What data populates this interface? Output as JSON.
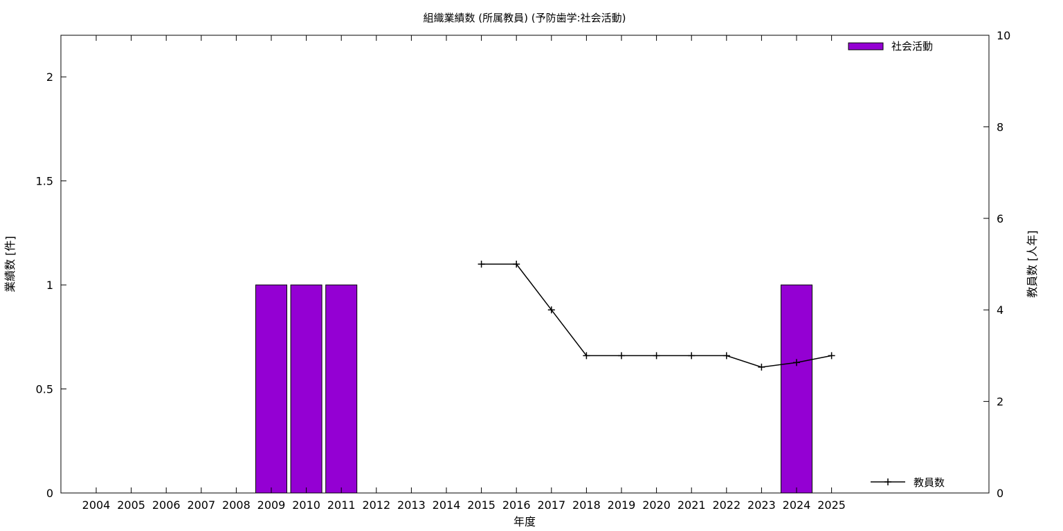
{
  "chart_data": {
    "type": "bar",
    "title": "組織業績数 (所属教員) (予防歯学:社会活動)",
    "xlabel": "年度",
    "ylabel": "業績数 [件]",
    "y2label": "教員数 [人年]",
    "categories": [
      "2004",
      "2005",
      "2006",
      "2007",
      "2008",
      "2009",
      "2010",
      "2011",
      "2012",
      "2013",
      "2014",
      "2015",
      "2016",
      "2017",
      "2018",
      "2019",
      "2020",
      "2021",
      "2022",
      "2023",
      "2024",
      "2025"
    ],
    "ylim": [
      0,
      2.2
    ],
    "yticks": [
      "0",
      "0.5",
      "1",
      "1.5",
      "2"
    ],
    "y2lim": [
      0,
      10
    ],
    "y2ticks": [
      "0",
      "2",
      "4",
      "6",
      "8",
      "10"
    ],
    "grid": false,
    "series": [
      {
        "name": "社会活動",
        "type": "bar",
        "axis": "left",
        "color": "#9400d3",
        "values": [
          0,
          0,
          0,
          0,
          0,
          1,
          1,
          1,
          0,
          0,
          0,
          0,
          0,
          0,
          0,
          0,
          0,
          0,
          0,
          0,
          1,
          0
        ]
      },
      {
        "name": "教員数",
        "type": "line",
        "axis": "right",
        "color": "#000000",
        "marker": "plus",
        "x": [
          "2015",
          "2016",
          "2017",
          "2018",
          "2019",
          "2020",
          "2021",
          "2022",
          "2023",
          "2024",
          "2025"
        ],
        "values": [
          5,
          5,
          4,
          3,
          3,
          3,
          3,
          3,
          2.75,
          2.85,
          3
        ]
      }
    ],
    "legend": [
      {
        "label": "社会活動",
        "position": "top-right"
      },
      {
        "label": "教員数",
        "position": "bottom-right"
      }
    ]
  }
}
